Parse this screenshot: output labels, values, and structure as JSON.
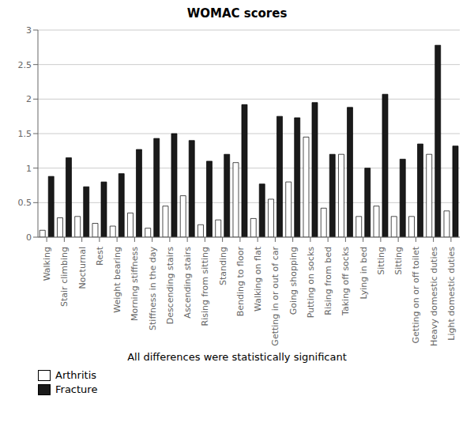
{
  "chart_data": {
    "type": "bar",
    "title": "WOMAC scores",
    "xlabel": "All differences were statistically significant",
    "categories": [
      "Walking",
      "Stair climbing",
      "Nocturnal",
      "Rest",
      "Weight bearing",
      "Morning stiffness",
      "Stiffness in the day",
      "Descending stairs",
      "Ascending stairs",
      "Rising from sitting",
      "Standing",
      "Bending to floor",
      "Walking on flat",
      "Getting in or out of car",
      "Going shopping",
      "Putting on socks",
      "Rising from bed",
      "Taking off socks",
      "Lying in bed",
      "Sitting",
      "Sitting",
      "Getting on or off toilet",
      "Heavy domestic duties",
      "Light domestic duties"
    ],
    "series": [
      {
        "name": "Arthritis",
        "color": "#ffffff",
        "values": [
          0.1,
          0.28,
          0.3,
          0.2,
          0.16,
          0.35,
          0.13,
          0.45,
          0.6,
          0.18,
          0.25,
          1.08,
          0.27,
          0.55,
          0.8,
          1.45,
          0.42,
          1.2,
          0.3,
          0.45,
          0.3,
          0.3,
          1.2,
          0.38
        ]
      },
      {
        "name": "Fracture",
        "color": "#1a1a1a",
        "values": [
          0.88,
          1.15,
          0.73,
          0.8,
          0.92,
          1.27,
          1.43,
          1.5,
          1.4,
          1.1,
          1.2,
          1.92,
          0.77,
          1.75,
          1.73,
          1.95,
          1.2,
          1.88,
          1.0,
          2.07,
          1.13,
          1.35,
          2.78,
          1.32
        ]
      }
    ],
    "ylim": [
      0,
      3
    ],
    "yticks": [
      0,
      0.5,
      1,
      1.5,
      2,
      2.5,
      3
    ],
    "grid": true,
    "legend": "lower left"
  }
}
